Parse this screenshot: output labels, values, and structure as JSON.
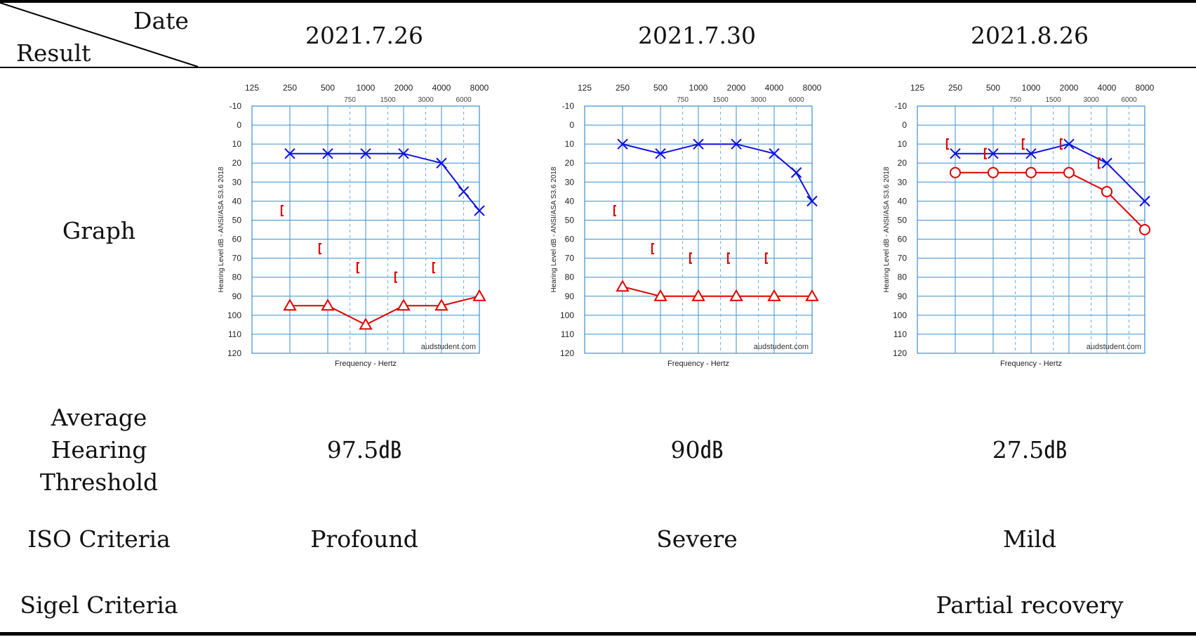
{
  "header": {
    "date_label": "Date",
    "result_label": "Result",
    "dates": [
      "2021.7.26",
      "2021.7.30",
      "2021.8.26"
    ]
  },
  "rows": {
    "graph": "Graph",
    "average_lines": [
      "Average",
      "Hearing",
      "Threshold"
    ],
    "iso": "ISO Criteria",
    "sigel": "Sigel Criteria"
  },
  "results": [
    {
      "average": "97.5㏈",
      "iso": "Profound",
      "sigel": ""
    },
    {
      "average": "90㏈",
      "iso": "Severe",
      "sigel": ""
    },
    {
      "average": "27.5㏈",
      "iso": "Mild",
      "sigel": "Partial recovery"
    }
  ],
  "colors": {
    "right_ear": "#e00000",
    "left_ear": "#1010e0",
    "grid": "#3d8fcc",
    "grid_dashed": "#6aaee0"
  },
  "chart_data": [
    {
      "type": "line",
      "xlabel": "Frequency - Hertz",
      "ylabel": "Hearing Level dB - ANSI/ASA S3.6 2018",
      "watermark": "audstudent.com",
      "x_ticks_major": [
        "125",
        "250",
        "500",
        "1000",
        "2000",
        "4000",
        "8000"
      ],
      "x_ticks_minor": [
        "750",
        "1500",
        "3000",
        "6000"
      ],
      "y_ticks": [
        "-10",
        "0",
        "10",
        "20",
        "30",
        "40",
        "50",
        "60",
        "70",
        "80",
        "90",
        "100",
        "110",
        "120"
      ],
      "ylim": [
        -10,
        120
      ],
      "y_inverted": true,
      "x_scale": "log",
      "grid": true,
      "series": [
        {
          "symbol": "triangle",
          "color": "#e00000",
          "connected": true,
          "points": [
            [
              250,
              95
            ],
            [
              500,
              95
            ],
            [
              1000,
              105
            ],
            [
              2000,
              95
            ],
            [
              4000,
              95
            ],
            [
              8000,
              90
            ]
          ]
        },
        {
          "symbol": "x",
          "color": "#1010e0",
          "connected": true,
          "points": [
            [
              250,
              15
            ],
            [
              500,
              15
            ],
            [
              1000,
              15
            ],
            [
              2000,
              15
            ],
            [
              4000,
              20
            ],
            [
              6000,
              35
            ],
            [
              8000,
              45
            ]
          ]
        },
        {
          "symbol": "bracket",
          "color": "#e00000",
          "connected": false,
          "points": [
            [
              250,
              45
            ],
            [
              500,
              65
            ],
            [
              1000,
              75
            ],
            [
              2000,
              80
            ],
            [
              4000,
              75
            ]
          ]
        }
      ]
    },
    {
      "type": "line",
      "xlabel": "Frequency - Hertz",
      "ylabel": "Hearing Level dB - ANSI/ASA S3.6 2018",
      "watermark": "audstudent.com",
      "x_ticks_major": [
        "125",
        "250",
        "500",
        "1000",
        "2000",
        "4000",
        "8000"
      ],
      "x_ticks_minor": [
        "750",
        "1500",
        "3000",
        "6000"
      ],
      "y_ticks": [
        "-10",
        "0",
        "10",
        "20",
        "30",
        "40",
        "50",
        "60",
        "70",
        "80",
        "90",
        "100",
        "110",
        "120"
      ],
      "ylim": [
        -10,
        120
      ],
      "y_inverted": true,
      "x_scale": "log",
      "grid": true,
      "series": [
        {
          "symbol": "triangle",
          "color": "#e00000",
          "connected": true,
          "points": [
            [
              250,
              85
            ],
            [
              500,
              90
            ],
            [
              1000,
              90
            ],
            [
              2000,
              90
            ],
            [
              4000,
              90
            ],
            [
              8000,
              90
            ]
          ]
        },
        {
          "symbol": "x",
          "color": "#1010e0",
          "connected": true,
          "points": [
            [
              250,
              10
            ],
            [
              500,
              15
            ],
            [
              1000,
              10
            ],
            [
              2000,
              10
            ],
            [
              4000,
              15
            ],
            [
              6000,
              25
            ],
            [
              8000,
              40
            ]
          ]
        },
        {
          "symbol": "bracket",
          "color": "#e00000",
          "connected": false,
          "points": [
            [
              250,
              45
            ],
            [
              500,
              65
            ],
            [
              1000,
              70
            ],
            [
              2000,
              70
            ],
            [
              4000,
              70
            ]
          ]
        }
      ]
    },
    {
      "type": "line",
      "xlabel": "Frequency - Hertz",
      "ylabel": "Hearing Level dB - ANSI/ASA S3.6 2018",
      "watermark": "audstudent.com",
      "x_ticks_major": [
        "125",
        "250",
        "500",
        "1000",
        "2000",
        "4000",
        "8000"
      ],
      "x_ticks_minor": [
        "750",
        "1500",
        "3000",
        "6000"
      ],
      "y_ticks": [
        "-10",
        "0",
        "10",
        "20",
        "30",
        "40",
        "50",
        "60",
        "70",
        "80",
        "90",
        "100",
        "110",
        "120"
      ],
      "ylim": [
        -10,
        120
      ],
      "y_inverted": true,
      "x_scale": "log",
      "grid": true,
      "series": [
        {
          "symbol": "circle",
          "color": "#e00000",
          "connected": true,
          "points": [
            [
              250,
              25
            ],
            [
              500,
              25
            ],
            [
              1000,
              25
            ],
            [
              2000,
              25
            ],
            [
              4000,
              35
            ],
            [
              8000,
              55
            ]
          ]
        },
        {
          "symbol": "x",
          "color": "#1010e0",
          "connected": true,
          "points": [
            [
              250,
              15
            ],
            [
              500,
              15
            ],
            [
              1000,
              15
            ],
            [
              2000,
              10
            ],
            [
              4000,
              20
            ],
            [
              8000,
              40
            ]
          ]
        },
        {
          "symbol": "bracket",
          "color": "#e00000",
          "connected": false,
          "points": [
            [
              250,
              10
            ],
            [
              500,
              15
            ],
            [
              1000,
              10
            ],
            [
              2000,
              10
            ],
            [
              4000,
              20
            ]
          ]
        }
      ]
    }
  ]
}
